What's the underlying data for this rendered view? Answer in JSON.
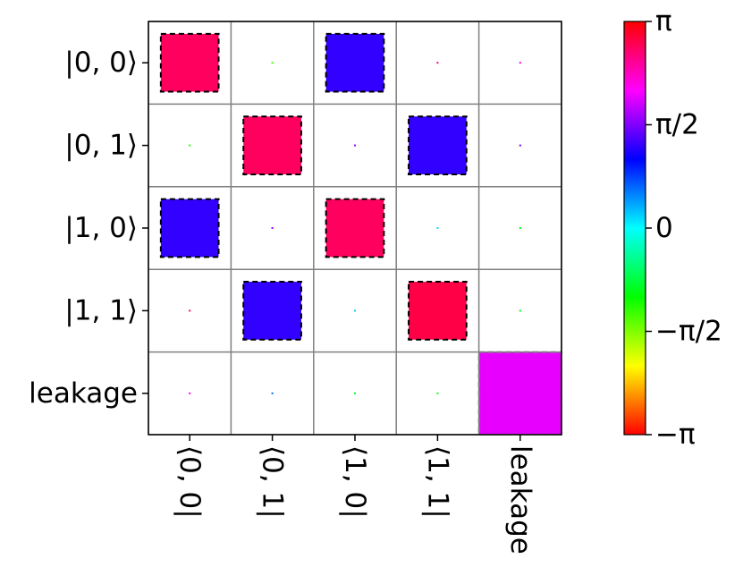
{
  "chart_data": {
    "type": "heatmap",
    "title": "",
    "xlabel": "",
    "ylabel": "",
    "row_labels": [
      "|0, 0⟩",
      "|0, 1⟩",
      "|1, 0⟩",
      "|1, 1⟩",
      "leakage"
    ],
    "col_labels": [
      "⟨0, 0|",
      "⟨0, 1|",
      "⟨1, 0|",
      "⟨1, 1|",
      "leakage"
    ],
    "cells": [
      [
        {
          "mag": 0.7,
          "phase": 2.75,
          "dashed": "black"
        },
        {
          "mag": 0.02,
          "phase": -1.3
        },
        {
          "mag": 0.7,
          "phase": 1.25,
          "dashed": "black"
        },
        {
          "mag": 0.015,
          "phase": 2.6
        },
        {
          "mag": 0.01,
          "phase": 2.2
        }
      ],
      [
        {
          "mag": 0.02,
          "phase": -1.2
        },
        {
          "mag": 0.7,
          "phase": 2.75,
          "dashed": "black"
        },
        {
          "mag": 0.02,
          "phase": 1.7
        },
        {
          "mag": 0.7,
          "phase": 1.25,
          "dashed": "black"
        },
        {
          "mag": 0.01,
          "phase": 1.5
        }
      ],
      [
        {
          "mag": 0.7,
          "phase": 1.25,
          "dashed": "black"
        },
        {
          "mag": 0.02,
          "phase": 1.7
        },
        {
          "mag": 0.7,
          "phase": 2.75,
          "dashed": "black"
        },
        {
          "mag": 0.015,
          "phase": 0.1
        },
        {
          "mag": 0.01,
          "phase": -1.0
        }
      ],
      [
        {
          "mag": 0.015,
          "phase": 2.7
        },
        {
          "mag": 0.7,
          "phase": 1.25,
          "dashed": "black"
        },
        {
          "mag": 0.015,
          "phase": 0.2
        },
        {
          "mag": 0.7,
          "phase": 2.85,
          "dashed": "black"
        },
        {
          "mag": 0.01,
          "phase": -1.0
        }
      ],
      [
        {
          "mag": 0.01,
          "phase": 2.2
        },
        {
          "mag": 0.01,
          "phase": 0.6
        },
        {
          "mag": 0.01,
          "phase": -0.9
        },
        {
          "mag": 0.01,
          "phase": -0.9
        },
        {
          "mag": 1.0,
          "phase": 2.0,
          "dashed": "gray"
        }
      ]
    ],
    "colorbar": {
      "colormap": "hsv",
      "range": [
        -3.14159,
        3.14159
      ],
      "tick_labels": [
        "π",
        "π/2",
        "0",
        "−π/2",
        "−π"
      ]
    },
    "grid": true
  },
  "colors": {
    "grid_line": "#808080",
    "dashed_black": "#000000",
    "dashed_gray": "#9a9a9a"
  }
}
